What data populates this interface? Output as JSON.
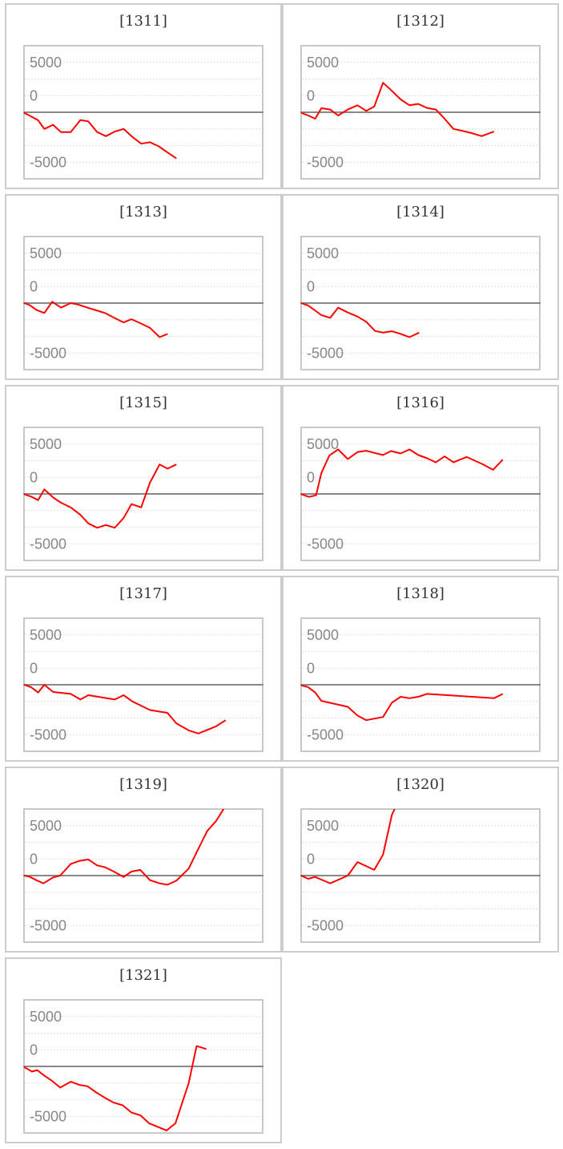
{
  "colors": {
    "series": "#ff0000",
    "zero_line": "#888888",
    "grid": "#dddddd",
    "frame": "#c8c8c8"
  },
  "chart_data": [
    {
      "type": "line",
      "title": "[1311]",
      "ylim": [
        -10000,
        10000
      ],
      "xlim": [
        0,
        27.1
      ],
      "grid": true,
      "ytick_labels": [
        "5000",
        "0",
        "-5000"
      ],
      "x": [
        0,
        0.6,
        1.6,
        2.3,
        3.3,
        4.2,
        5.3,
        6.4,
        7.3,
        8.3,
        9.3,
        10.3,
        11.3,
        12.3,
        13.3,
        14.3,
        15.3,
        16.3,
        17.3
      ],
      "y": [
        -80,
        -480,
        -1210,
        -2500,
        -1890,
        -2980,
        -2980,
        -1170,
        -1370,
        -2980,
        -3590,
        -2900,
        -2500,
        -3710,
        -4720,
        -4510,
        -5120,
        -6050,
        -6940
      ]
    },
    {
      "type": "line",
      "title": "[1312]",
      "ylim": [
        -10000,
        10000
      ],
      "xlim": [
        0,
        27.1
      ],
      "grid": true,
      "ytick_labels": [
        "5000",
        "0",
        "-5000"
      ],
      "x": [
        0,
        0.8,
        1.6,
        2.3,
        3.3,
        4.2,
        5.3,
        6.4,
        7.4,
        8.3,
        9.3,
        10.3,
        11.3,
        12.3,
        13.3,
        14.3,
        15.3,
        16.3,
        17.3,
        18.3,
        19.5,
        20.5,
        21.9
      ],
      "y": [
        -80,
        -480,
        -970,
        610,
        410,
        -480,
        410,
        1050,
        200,
        850,
        4430,
        3220,
        1930,
        1050,
        1250,
        650,
        410,
        -970,
        -2500,
        -2780,
        -3180,
        -3590,
        -2900
      ]
    },
    {
      "type": "line",
      "title": "[1313]",
      "ylim": [
        -10000,
        10000
      ],
      "xlim": [
        0,
        27.1
      ],
      "grid": true,
      "ytick_labels": [
        "5000",
        "0",
        "-5000"
      ],
      "x": [
        0,
        0.6,
        1.4,
        2.3,
        3.2,
        4.2,
        5.3,
        6.1,
        7.2,
        8.2,
        9.2,
        10.2,
        11.3,
        12.2,
        13.2,
        14.3,
        15.4,
        16.3
      ],
      "y": [
        0,
        -280,
        -1010,
        -1490,
        200,
        -690,
        0,
        -200,
        -690,
        -1090,
        -1490,
        -2180,
        -2900,
        -2420,
        -3020,
        -3710,
        -5120,
        -4630
      ]
    },
    {
      "type": "line",
      "title": "[1314]",
      "ylim": [
        -10000,
        10000
      ],
      "xlim": [
        0,
        27.1
      ],
      "grid": true,
      "ytick_labels": [
        "5000",
        "0",
        "-5000"
      ],
      "x": [
        0,
        0.8,
        2.3,
        3.3,
        4.2,
        5.3,
        6.4,
        7.4,
        8.4,
        9.3,
        10.3,
        11.3,
        12.3,
        13.4
      ],
      "y": [
        0,
        -360,
        -1810,
        -2220,
        -690,
        -1410,
        -2020,
        -2820,
        -4190,
        -4430,
        -4230,
        -4630,
        -5120,
        -4430
      ]
    },
    {
      "type": "line",
      "title": "[1315]",
      "ylim": [
        -10000,
        10000
      ],
      "xlim": [
        0,
        27.1
      ],
      "grid": true,
      "ytick_labels": [
        "5000",
        "0",
        "-5000"
      ],
      "x": [
        0,
        0.8,
        1.6,
        2.3,
        3.3,
        4.2,
        5.3,
        6.4,
        7.3,
        8.3,
        9.3,
        10.3,
        11.3,
        12.2,
        13.3,
        14.3,
        15.4,
        16.3,
        17.3
      ],
      "y": [
        -40,
        -400,
        -930,
        690,
        -530,
        -1330,
        -2020,
        -3140,
        -4430,
        -5080,
        -4670,
        -5080,
        -3630,
        -1530,
        -2020,
        1690,
        4430,
        3790,
        4430
      ]
    },
    {
      "type": "line",
      "title": "[1316]",
      "ylim": [
        -10000,
        10000
      ],
      "xlim": [
        0,
        27.1
      ],
      "grid": true,
      "ytick_labels": [
        "5000",
        "0",
        "-5000"
      ],
      "x": [
        0,
        0.9,
        1.7,
        2.3,
        3.2,
        4.2,
        5.3,
        6.4,
        7.4,
        8.3,
        9.3,
        10.2,
        11.3,
        12.3,
        13.3,
        14.3,
        15.3,
        16.3,
        17.3,
        18.8,
        20.6,
        21.8,
        22.9
      ],
      "y": [
        -40,
        -440,
        -200,
        3140,
        5760,
        6690,
        5240,
        6290,
        6490,
        6170,
        5840,
        6450,
        6090,
        6690,
        5840,
        5360,
        4750,
        5640,
        4750,
        5560,
        4470,
        3630,
        5160
      ]
    },
    {
      "type": "line",
      "title": "[1317]",
      "ylim": [
        -10000,
        10000
      ],
      "xlim": [
        0,
        27.1
      ],
      "grid": true,
      "ytick_labels": [
        "5000",
        "0",
        "-5000"
      ],
      "x": [
        0,
        0.8,
        1.6,
        2.3,
        3.3,
        5.3,
        6.4,
        7.3,
        10.3,
        11.3,
        12.3,
        14.3,
        16.3,
        17.3,
        18.7,
        19.8,
        21.8,
        22.9
      ],
      "y": [
        0,
        -360,
        -1170,
        0,
        -1090,
        -1370,
        -2220,
        -1570,
        -2220,
        -1570,
        -2500,
        -3790,
        -4230,
        -5800,
        -6850,
        -7330,
        -6250,
        -5320
      ]
    },
    {
      "type": "line",
      "title": "[1318]",
      "ylim": [
        -10000,
        10000
      ],
      "xlim": [
        0,
        27.1
      ],
      "grid": true,
      "ytick_labels": [
        "5000",
        "0",
        "-5000"
      ],
      "x": [
        0,
        0.8,
        1.6,
        2.3,
        5.3,
        6.4,
        7.4,
        9.3,
        10.3,
        11.3,
        12.3,
        13.3,
        14.3,
        21.9,
        22.9
      ],
      "y": [
        -80,
        -360,
        -1170,
        -2420,
        -3310,
        -4630,
        -5320,
        -4840,
        -2700,
        -1810,
        -2020,
        -1810,
        -1370,
        -2020,
        -1370
      ]
    },
    {
      "type": "line",
      "title": "[1319]",
      "ylim": [
        -10000,
        10000
      ],
      "xlim": [
        0,
        27.1
      ],
      "grid": true,
      "ytick_labels": [
        "5000",
        "0",
        "-5000"
      ],
      "x": [
        0,
        0.6,
        1.4,
        2.2,
        3.3,
        4.1,
        5.3,
        6.3,
        7.3,
        8.3,
        9.2,
        10.2,
        11.3,
        12.2,
        13.2,
        14.3,
        15.4,
        16.3,
        17.3,
        18.7,
        19.8,
        20.8,
        21.8,
        22.9,
        25.2
      ],
      "y": [
        0,
        -160,
        -690,
        -1170,
        -280,
        0,
        1730,
        2220,
        2420,
        1530,
        1250,
        600,
        -200,
        600,
        850,
        -690,
        -1170,
        -1370,
        -770,
        1050,
        4030,
        6690,
        8180,
        10500,
        11000
      ]
    },
    {
      "type": "line",
      "title": "[1320]",
      "ylim": [
        -10000,
        10000
      ],
      "xlim": [
        0,
        27.1
      ],
      "grid": true,
      "ytick_labels": [
        "5000",
        "0",
        "-5000"
      ],
      "x": [
        0,
        0.8,
        1.6,
        2.3,
        3.3,
        5.3,
        6.4,
        8.3,
        9.3,
        10.3,
        11.3,
        21.9
      ],
      "y": [
        0,
        -480,
        -200,
        -600,
        -1170,
        0,
        2020,
        850,
        3140,
        9110,
        12000,
        12000
      ]
    },
    {
      "type": "line",
      "title": "[1321]",
      "ylim": [
        -10000,
        10000
      ],
      "xlim": [
        0,
        27.1
      ],
      "grid": true,
      "ytick_labels": [
        "5000",
        "0",
        "-5000"
      ],
      "x": [
        0,
        0.9,
        1.5,
        2.2,
        3.1,
        4.1,
        5.3,
        6.3,
        7.2,
        8.2,
        9.2,
        10.2,
        11.2,
        12.2,
        13.2,
        14.2,
        16.2,
        17.2,
        18.7,
        19.6,
        20.7
      ],
      "y": [
        -80,
        -770,
        -560,
        -1290,
        -2100,
        -3180,
        -2300,
        -2780,
        -2980,
        -3910,
        -4720,
        -5440,
        -5840,
        -6930,
        -7340,
        -8540,
        -9630,
        -8540,
        -2500,
        3060,
        2620
      ]
    }
  ]
}
